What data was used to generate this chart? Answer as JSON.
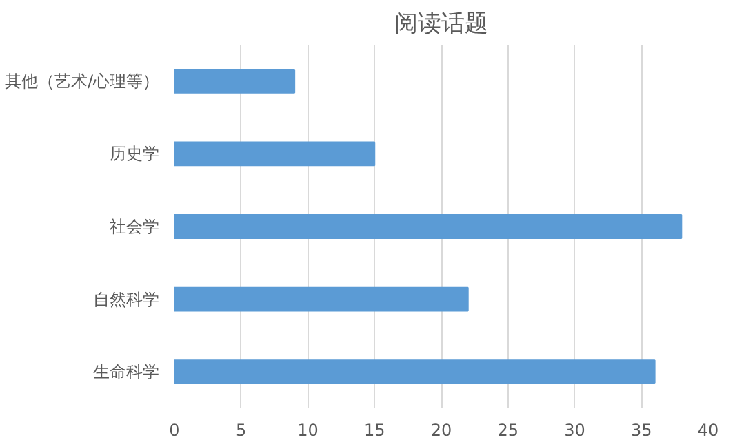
{
  "chart_data": {
    "type": "bar",
    "orientation": "horizontal",
    "title": "阅读话题",
    "categories": [
      "其他（艺术/心理等）",
      "历史学",
      "社会学",
      "自然科学",
      "生命科学"
    ],
    "values": [
      9,
      15,
      38,
      22,
      36
    ],
    "color": "#5b9bd5",
    "xlim": [
      0,
      40
    ],
    "xticks": [
      0,
      5,
      10,
      15,
      20,
      25,
      30,
      35,
      40
    ],
    "grid": "x"
  }
}
